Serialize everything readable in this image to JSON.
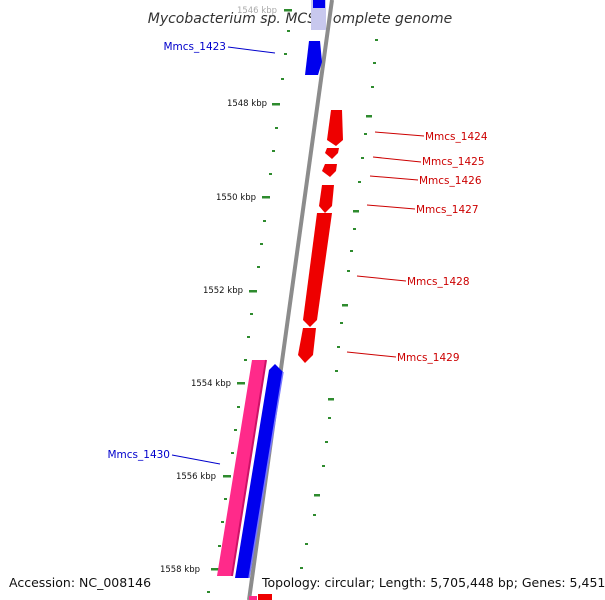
{
  "title": "Mycobacterium sp. MCS, complete genome",
  "footer": {
    "accession": "Accession: NC_008146",
    "topology": "Topology: circular; Length: 5,705,448 bp; Genes: 5,451"
  },
  "colors": {
    "backbone": "#8c8c8c",
    "forward_gene": "#0000ee",
    "reverse_gene": "#ee0000",
    "pseudo_gene": "#ff2a8a",
    "tick": "#2e8b2e"
  },
  "ticks": [
    {
      "label": "1546 kbp"
    },
    {
      "label": "1548 kbp"
    },
    {
      "label": "1550 kbp"
    },
    {
      "label": "1552 kbp"
    },
    {
      "label": "1554 kbp"
    },
    {
      "label": "1556 kbp"
    },
    {
      "label": "1558 kbp"
    }
  ],
  "genes": [
    {
      "name": "Mmcs_1423",
      "strand": "forward"
    },
    {
      "name": "Mmcs_1424",
      "strand": "reverse"
    },
    {
      "name": "Mmcs_1425",
      "strand": "reverse"
    },
    {
      "name": "Mmcs_1426",
      "strand": "reverse"
    },
    {
      "name": "Mmcs_1427",
      "strand": "reverse"
    },
    {
      "name": "Mmcs_1428",
      "strand": "reverse"
    },
    {
      "name": "Mmcs_1429",
      "strand": "reverse"
    },
    {
      "name": "Mmcs_1430",
      "strand": "forward"
    }
  ]
}
